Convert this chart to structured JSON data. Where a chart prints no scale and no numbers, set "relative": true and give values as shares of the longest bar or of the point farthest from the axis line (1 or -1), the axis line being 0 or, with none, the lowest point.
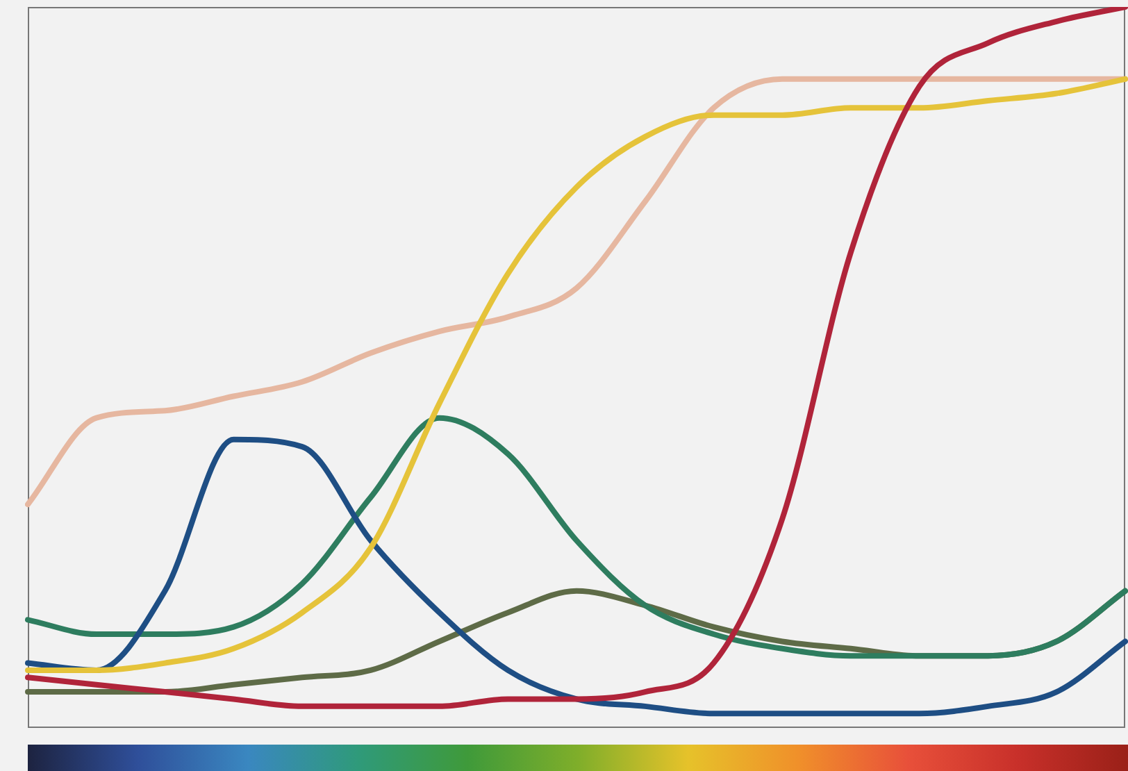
{
  "chart_data": {
    "type": "line",
    "relative": true,
    "legend": false,
    "marker": "none",
    "line_style": "solid",
    "categories": [
      null,
      null,
      null,
      null,
      null,
      null,
      null,
      null,
      null,
      null,
      null,
      null,
      null,
      null,
      null,
      null,
      null
    ],
    "series": [
      {
        "color": "#b0243a",
        "values": [
          0.07,
          0.06,
          0.05,
          0.04,
          0.03,
          0.03,
          0.03,
          0.04,
          0.04,
          0.05,
          0.09,
          0.29,
          0.66,
          0.89,
          0.95,
          0.98,
          1
        ]
      },
      {
        "color": "#e5c33a",
        "values": [
          0.08,
          0.08,
          0.09,
          0.11,
          0.16,
          0.25,
          0.45,
          0.63,
          0.75,
          0.82,
          0.85,
          0.85,
          0.86,
          0.86,
          0.87,
          0.88,
          0.9
        ]
      },
      {
        "color": "#e6b7a0",
        "values": [
          0.31,
          0.43,
          0.44,
          0.46,
          0.48,
          0.52,
          0.55,
          0.57,
          0.61,
          0.73,
          0.86,
          0.9,
          0.9,
          0.9,
          0.9,
          0.9,
          0.9
        ]
      },
      {
        "color": "#1e4e84",
        "values": [
          0.09,
          0.08,
          0.19,
          0.4,
          0.39,
          0.26,
          0.16,
          0.08,
          0.04,
          0.03,
          0.02,
          0.02,
          0.02,
          0.02,
          0.03,
          0.05,
          0.12
        ]
      },
      {
        "color": "#2e7d5f",
        "values": [
          0.15,
          0.13,
          0.13,
          0.14,
          0.2,
          0.32,
          0.43,
          0.38,
          0.26,
          0.17,
          0.13,
          0.11,
          0.1,
          0.1,
          0.1,
          0.12,
          0.19
        ]
      },
      {
        "color": "#5e6b47",
        "values": [
          0.05,
          0.05,
          0.05,
          0.06,
          0.07,
          0.08,
          0.12,
          0.16,
          0.19,
          0.17,
          0.14,
          0.12,
          0.11,
          0.1,
          0.1,
          0.12,
          0.19
        ]
      }
    ]
  }
}
